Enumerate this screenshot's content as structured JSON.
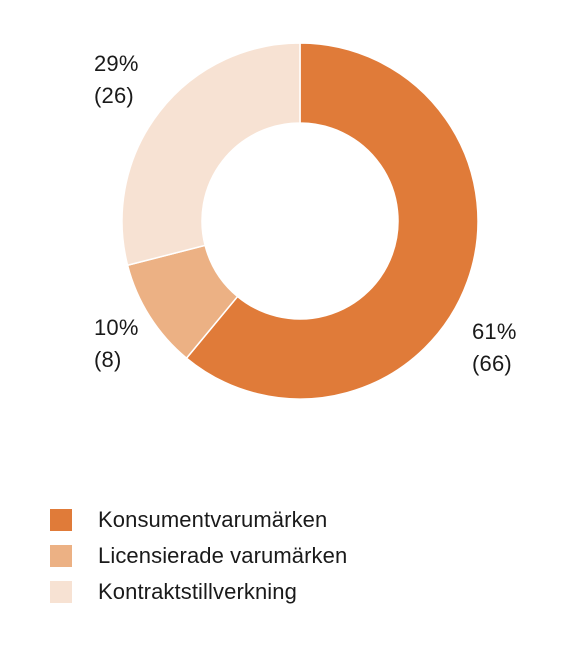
{
  "chart_data": {
    "type": "pie",
    "donut": true,
    "categories": [
      "Konsumentvarumärken",
      "Licensierade varumärken",
      "Kontraktstillverkning"
    ],
    "values": [
      61,
      10,
      29
    ],
    "counts": [
      66,
      8,
      26
    ],
    "labels": [
      {
        "pct": "61%",
        "count": "(66)"
      },
      {
        "pct": "10%",
        "count": "(8)"
      },
      {
        "pct": "29%",
        "count": "(26)"
      }
    ],
    "colors": [
      "#e07b39",
      "#ecb184",
      "#f7e2d3"
    ],
    "legend_position": "bottom-left"
  },
  "legend": [
    {
      "label": "Konsumentvarumärken",
      "color": "#e07b39"
    },
    {
      "label": "Licensierade varumärken",
      "color": "#ecb184"
    },
    {
      "label": "Kontraktstillverkning",
      "color": "#f7e2d3"
    }
  ]
}
